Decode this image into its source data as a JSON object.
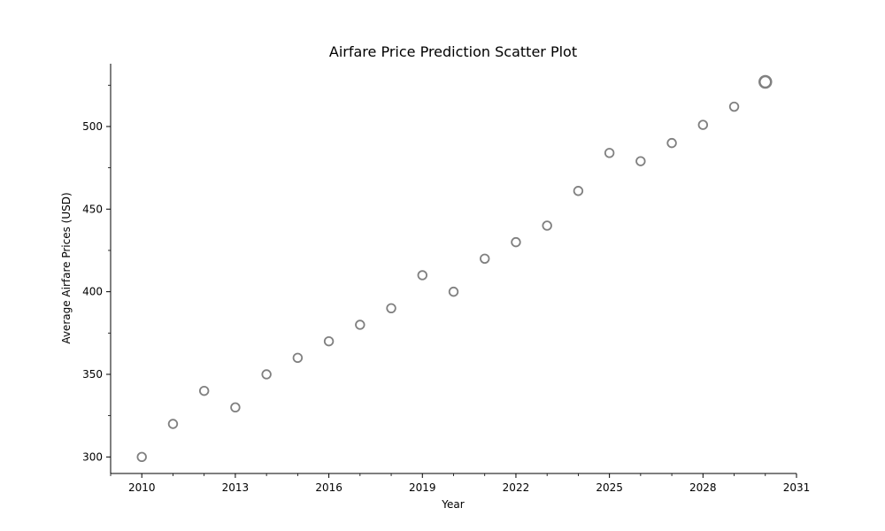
{
  "chart_data": {
    "type": "scatter",
    "title": "Airfare Price Prediction Scatter Plot",
    "xlabel": "Year",
    "ylabel": "Average Airfare Prices (USD)",
    "xlim": [
      2009,
      2031
    ],
    "ylim": [
      290,
      538
    ],
    "x_ticks": [
      2010,
      2013,
      2016,
      2019,
      2022,
      2025,
      2028,
      2031
    ],
    "x_tick_labels": [
      "2010",
      "2013",
      "2016",
      "2019",
      "2022",
      "2025",
      "2028",
      "2031"
    ],
    "x_minor_ticks": [
      2009,
      2011,
      2012,
      2014,
      2015,
      2017,
      2018,
      2020,
      2021,
      2023,
      2024,
      2026,
      2027,
      2029,
      2030
    ],
    "y_ticks": [
      300,
      350,
      400,
      450,
      500
    ],
    "y_tick_labels": [
      "300",
      "350",
      "400",
      "450",
      "500"
    ],
    "y_minor_ticks": [
      325,
      375,
      425,
      475,
      525
    ],
    "grid": false,
    "marker_color": "#808080",
    "marker_fill": "#ffffff",
    "series": [
      {
        "x": [
          2010,
          2011,
          2012,
          2013,
          2014,
          2015,
          2016,
          2017,
          2018,
          2019,
          2020,
          2021,
          2022,
          2023,
          2024,
          2025,
          2026,
          2027,
          2028,
          2029,
          2030
        ],
        "y": [
          300,
          320,
          340,
          330,
          350,
          360,
          370,
          380,
          390,
          410,
          400,
          420,
          430,
          440,
          461,
          484,
          479,
          490,
          501,
          512,
          527
        ]
      }
    ]
  }
}
